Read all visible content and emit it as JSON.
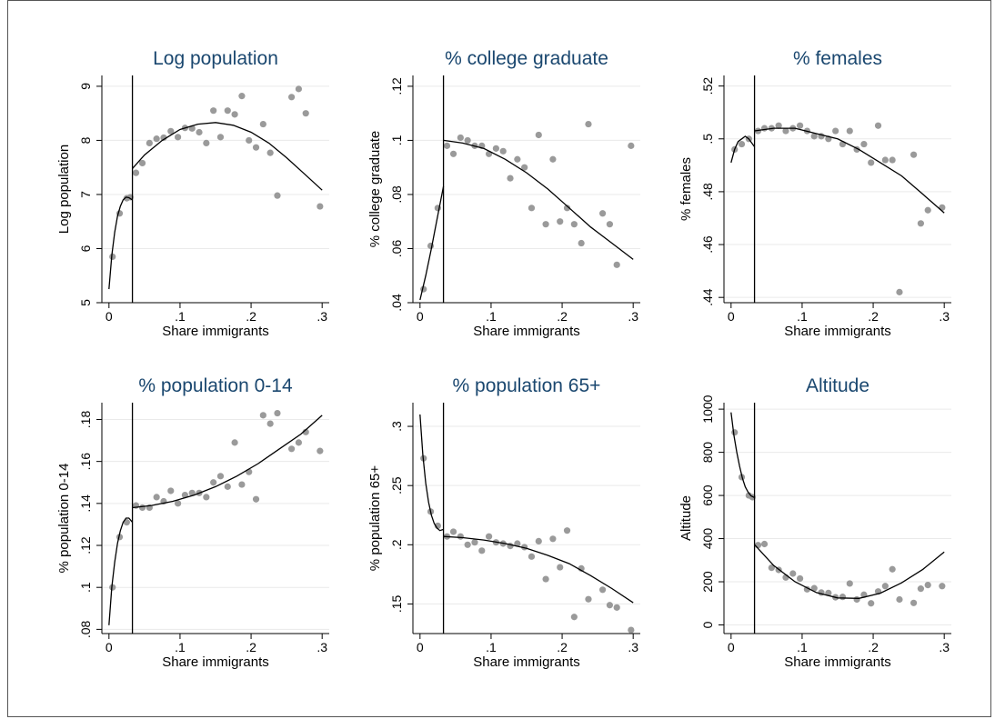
{
  "figure": {
    "bg_color": "#ffffff",
    "title_color": "#1a476f",
    "point_color": "#9a9a9a",
    "cutoff_x": 0.033
  },
  "chart_data": [
    {
      "type": "scatter",
      "title": "Log population",
      "xlabel": "Share immigrants",
      "ylabel": "Log population",
      "xlim": [
        -0.01,
        0.31
      ],
      "ylim": [
        5,
        9.2
      ],
      "xticks": [
        0,
        0.1,
        0.2,
        0.3
      ],
      "xtick_labels": [
        "0",
        ".1",
        ".2",
        ".3"
      ],
      "yticks": [
        5,
        6,
        7,
        8,
        9
      ],
      "ytick_labels": [
        "5",
        "6",
        "7",
        "8",
        "9"
      ],
      "grid": true,
      "points": [
        [
          0.005,
          5.85
        ],
        [
          0.015,
          6.65
        ],
        [
          0.025,
          6.93
        ],
        [
          0.03,
          6.95
        ],
        [
          0.038,
          7.4
        ],
        [
          0.047,
          7.58
        ],
        [
          0.057,
          7.95
        ],
        [
          0.067,
          8.03
        ],
        [
          0.077,
          8.05
        ],
        [
          0.087,
          8.17
        ],
        [
          0.097,
          8.06
        ],
        [
          0.107,
          8.23
        ],
        [
          0.117,
          8.22
        ],
        [
          0.127,
          8.15
        ],
        [
          0.137,
          7.95
        ],
        [
          0.147,
          8.55
        ],
        [
          0.157,
          8.06
        ],
        [
          0.167,
          8.55
        ],
        [
          0.177,
          8.48
        ],
        [
          0.187,
          8.82
        ],
        [
          0.197,
          8.0
        ],
        [
          0.207,
          7.87
        ],
        [
          0.217,
          8.3
        ],
        [
          0.227,
          7.77
        ],
        [
          0.237,
          6.98
        ],
        [
          0.257,
          8.8
        ],
        [
          0.267,
          8.95
        ],
        [
          0.277,
          8.5
        ],
        [
          0.297,
          6.78
        ]
      ],
      "fit_left": [
        [
          0,
          5.25
        ],
        [
          0.004,
          5.87
        ],
        [
          0.008,
          6.3
        ],
        [
          0.012,
          6.6
        ],
        [
          0.016,
          6.78
        ],
        [
          0.02,
          6.9
        ],
        [
          0.024,
          6.95
        ],
        [
          0.028,
          6.94
        ],
        [
          0.033,
          6.9
        ]
      ],
      "fit_right": [
        [
          0.033,
          7.48
        ],
        [
          0.05,
          7.73
        ],
        [
          0.075,
          8.0
        ],
        [
          0.1,
          8.2
        ],
        [
          0.125,
          8.3
        ],
        [
          0.15,
          8.33
        ],
        [
          0.175,
          8.28
        ],
        [
          0.2,
          8.15
        ],
        [
          0.225,
          7.95
        ],
        [
          0.25,
          7.68
        ],
        [
          0.275,
          7.38
        ],
        [
          0.3,
          7.08
        ]
      ]
    },
    {
      "type": "scatter",
      "title": "% college graduate",
      "xlabel": "Share immigrants",
      "ylabel": "% college graduate",
      "xlim": [
        -0.01,
        0.31
      ],
      "ylim": [
        0.04,
        0.124
      ],
      "xticks": [
        0,
        0.1,
        0.2,
        0.3
      ],
      "xtick_labels": [
        "0",
        ".1",
        ".2",
        ".3"
      ],
      "yticks": [
        0.04,
        0.06,
        0.08,
        0.1,
        0.12
      ],
      "ytick_labels": [
        ".04",
        ".06",
        ".08",
        ".1",
        ".12"
      ],
      "grid": true,
      "points": [
        [
          0.005,
          0.045
        ],
        [
          0.015,
          0.061
        ],
        [
          0.025,
          0.075
        ],
        [
          0.038,
          0.098
        ],
        [
          0.047,
          0.095
        ],
        [
          0.057,
          0.101
        ],
        [
          0.067,
          0.1
        ],
        [
          0.077,
          0.098
        ],
        [
          0.087,
          0.098
        ],
        [
          0.097,
          0.095
        ],
        [
          0.107,
          0.097
        ],
        [
          0.117,
          0.096
        ],
        [
          0.127,
          0.086
        ],
        [
          0.137,
          0.093
        ],
        [
          0.147,
          0.09
        ],
        [
          0.157,
          0.075
        ],
        [
          0.167,
          0.102
        ],
        [
          0.177,
          0.069
        ],
        [
          0.187,
          0.093
        ],
        [
          0.197,
          0.07
        ],
        [
          0.207,
          0.075
        ],
        [
          0.217,
          0.069
        ],
        [
          0.227,
          0.062
        ],
        [
          0.237,
          0.106
        ],
        [
          0.257,
          0.073
        ],
        [
          0.267,
          0.069
        ],
        [
          0.277,
          0.054
        ],
        [
          0.297,
          0.098
        ]
      ],
      "fit_left": [
        [
          0,
          0.041
        ],
        [
          0.008,
          0.05
        ],
        [
          0.016,
          0.06
        ],
        [
          0.024,
          0.071
        ],
        [
          0.033,
          0.083
        ]
      ],
      "fit_right": [
        [
          0.033,
          0.1
        ],
        [
          0.06,
          0.099
        ],
        [
          0.09,
          0.097
        ],
        [
          0.12,
          0.093
        ],
        [
          0.15,
          0.088
        ],
        [
          0.18,
          0.082
        ],
        [
          0.21,
          0.075
        ],
        [
          0.24,
          0.068
        ],
        [
          0.27,
          0.062
        ],
        [
          0.3,
          0.056
        ]
      ]
    },
    {
      "type": "scatter",
      "title": "% females",
      "xlabel": "Share immigrants",
      "ylabel": "% females",
      "xlim": [
        -0.01,
        0.31
      ],
      "ylim": [
        0.438,
        0.524
      ],
      "xticks": [
        0,
        0.1,
        0.2,
        0.3
      ],
      "xtick_labels": [
        "0",
        ".1",
        ".2",
        ".3"
      ],
      "yticks": [
        0.44,
        0.46,
        0.48,
        0.5,
        0.52
      ],
      "ytick_labels": [
        ".44",
        ".46",
        ".48",
        ".5",
        ".52"
      ],
      "grid": true,
      "points": [
        [
          0.005,
          0.496
        ],
        [
          0.015,
          0.498
        ],
        [
          0.025,
          0.5
        ],
        [
          0.038,
          0.503
        ],
        [
          0.047,
          0.504
        ],
        [
          0.057,
          0.504
        ],
        [
          0.067,
          0.505
        ],
        [
          0.077,
          0.503
        ],
        [
          0.087,
          0.504
        ],
        [
          0.097,
          0.505
        ],
        [
          0.107,
          0.503
        ],
        [
          0.117,
          0.501
        ],
        [
          0.127,
          0.501
        ],
        [
          0.137,
          0.5
        ],
        [
          0.147,
          0.503
        ],
        [
          0.157,
          0.498
        ],
        [
          0.167,
          0.503
        ],
        [
          0.177,
          0.496
        ],
        [
          0.187,
          0.498
        ],
        [
          0.197,
          0.491
        ],
        [
          0.207,
          0.505
        ],
        [
          0.217,
          0.492
        ],
        [
          0.227,
          0.492
        ],
        [
          0.237,
          0.442
        ],
        [
          0.257,
          0.494
        ],
        [
          0.267,
          0.468
        ],
        [
          0.277,
          0.473
        ],
        [
          0.297,
          0.474
        ]
      ],
      "fit_left": [
        [
          0,
          0.491
        ],
        [
          0.005,
          0.496
        ],
        [
          0.01,
          0.499
        ],
        [
          0.015,
          0.5
        ],
        [
          0.02,
          0.501
        ],
        [
          0.025,
          0.5
        ],
        [
          0.033,
          0.497
        ]
      ],
      "fit_right": [
        [
          0.033,
          0.503
        ],
        [
          0.06,
          0.504
        ],
        [
          0.09,
          0.504
        ],
        [
          0.12,
          0.502
        ],
        [
          0.15,
          0.5
        ],
        [
          0.18,
          0.496
        ],
        [
          0.21,
          0.491
        ],
        [
          0.24,
          0.486
        ],
        [
          0.27,
          0.479
        ],
        [
          0.3,
          0.472
        ]
      ]
    },
    {
      "type": "scatter",
      "title": "% population 0-14",
      "xlabel": "Share immigrants",
      "ylabel": "% population 0-14",
      "xlim": [
        -0.01,
        0.31
      ],
      "ylim": [
        0.078,
        0.188
      ],
      "xticks": [
        0,
        0.1,
        0.2,
        0.3
      ],
      "xtick_labels": [
        "0",
        ".1",
        ".2",
        ".3"
      ],
      "yticks": [
        0.08,
        0.1,
        0.12,
        0.14,
        0.16,
        0.18
      ],
      "ytick_labels": [
        ".08",
        ".1",
        ".12",
        ".14",
        ".16",
        ".18"
      ],
      "grid": true,
      "points": [
        [
          0.005,
          0.1
        ],
        [
          0.015,
          0.124
        ],
        [
          0.025,
          0.131
        ],
        [
          0.038,
          0.139
        ],
        [
          0.047,
          0.138
        ],
        [
          0.057,
          0.138
        ],
        [
          0.067,
          0.143
        ],
        [
          0.077,
          0.141
        ],
        [
          0.087,
          0.146
        ],
        [
          0.097,
          0.14
        ],
        [
          0.107,
          0.144
        ],
        [
          0.117,
          0.145
        ],
        [
          0.127,
          0.145
        ],
        [
          0.137,
          0.143
        ],
        [
          0.147,
          0.15
        ],
        [
          0.157,
          0.153
        ],
        [
          0.167,
          0.148
        ],
        [
          0.177,
          0.169
        ],
        [
          0.187,
          0.149
        ],
        [
          0.197,
          0.155
        ],
        [
          0.207,
          0.142
        ],
        [
          0.217,
          0.182
        ],
        [
          0.227,
          0.178
        ],
        [
          0.237,
          0.183
        ],
        [
          0.257,
          0.166
        ],
        [
          0.267,
          0.169
        ],
        [
          0.277,
          0.174
        ],
        [
          0.297,
          0.165
        ]
      ],
      "fit_left": [
        [
          0,
          0.082
        ],
        [
          0.004,
          0.1
        ],
        [
          0.008,
          0.112
        ],
        [
          0.012,
          0.121
        ],
        [
          0.016,
          0.127
        ],
        [
          0.02,
          0.131
        ],
        [
          0.024,
          0.133
        ],
        [
          0.028,
          0.133
        ],
        [
          0.033,
          0.131
        ]
      ],
      "fit_right": [
        [
          0.033,
          0.138
        ],
        [
          0.06,
          0.139
        ],
        [
          0.09,
          0.141
        ],
        [
          0.12,
          0.144
        ],
        [
          0.15,
          0.148
        ],
        [
          0.18,
          0.153
        ],
        [
          0.21,
          0.159
        ],
        [
          0.24,
          0.166
        ],
        [
          0.27,
          0.173
        ],
        [
          0.3,
          0.182
        ]
      ]
    },
    {
      "type": "scatter",
      "title": "% population 65+",
      "xlabel": "Share immigrants",
      "ylabel": "% population 65+",
      "xlim": [
        -0.01,
        0.31
      ],
      "ylim": [
        0.125,
        0.32
      ],
      "xticks": [
        0,
        0.1,
        0.2,
        0.3
      ],
      "xtick_labels": [
        "0",
        ".1",
        ".2",
        ".3"
      ],
      "yticks": [
        0.15,
        0.2,
        0.25,
        0.3
      ],
      "ytick_labels": [
        ".15",
        ".2",
        ".25",
        ".3"
      ],
      "grid": true,
      "points": [
        [
          0.005,
          0.273
        ],
        [
          0.015,
          0.228
        ],
        [
          0.025,
          0.216
        ],
        [
          0.038,
          0.207
        ],
        [
          0.047,
          0.211
        ],
        [
          0.057,
          0.207
        ],
        [
          0.067,
          0.2
        ],
        [
          0.077,
          0.202
        ],
        [
          0.087,
          0.195
        ],
        [
          0.097,
          0.207
        ],
        [
          0.107,
          0.202
        ],
        [
          0.117,
          0.201
        ],
        [
          0.127,
          0.199
        ],
        [
          0.137,
          0.201
        ],
        [
          0.147,
          0.198
        ],
        [
          0.157,
          0.19
        ],
        [
          0.167,
          0.203
        ],
        [
          0.177,
          0.171
        ],
        [
          0.187,
          0.205
        ],
        [
          0.197,
          0.181
        ],
        [
          0.207,
          0.212
        ],
        [
          0.217,
          0.139
        ],
        [
          0.227,
          0.18
        ],
        [
          0.237,
          0.154
        ],
        [
          0.257,
          0.162
        ],
        [
          0.267,
          0.149
        ],
        [
          0.277,
          0.147
        ],
        [
          0.297,
          0.128
        ]
      ],
      "fit_left": [
        [
          0,
          0.31
        ],
        [
          0.004,
          0.276
        ],
        [
          0.008,
          0.252
        ],
        [
          0.012,
          0.236
        ],
        [
          0.016,
          0.225
        ],
        [
          0.02,
          0.218
        ],
        [
          0.024,
          0.214
        ],
        [
          0.028,
          0.212
        ],
        [
          0.033,
          0.213
        ]
      ],
      "fit_right": [
        [
          0.033,
          0.207
        ],
        [
          0.06,
          0.206
        ],
        [
          0.09,
          0.204
        ],
        [
          0.12,
          0.201
        ],
        [
          0.15,
          0.197
        ],
        [
          0.18,
          0.191
        ],
        [
          0.21,
          0.184
        ],
        [
          0.24,
          0.174
        ],
        [
          0.27,
          0.163
        ],
        [
          0.3,
          0.151
        ]
      ]
    },
    {
      "type": "scatter",
      "title": "Altitude",
      "xlabel": "Share immigrants",
      "ylabel": "Altitude",
      "xlim": [
        -0.01,
        0.31
      ],
      "ylim": [
        -40,
        1030
      ],
      "xticks": [
        0,
        0.1,
        0.2,
        0.3
      ],
      "xtick_labels": [
        "0",
        ".1",
        ".2",
        ".3"
      ],
      "yticks": [
        0,
        200,
        400,
        600,
        800,
        1000
      ],
      "ytick_labels": [
        "0",
        "200",
        "400",
        "600",
        "800",
        "1000"
      ],
      "grid": true,
      "points": [
        [
          0.005,
          892
        ],
        [
          0.015,
          685
        ],
        [
          0.025,
          600
        ],
        [
          0.03,
          592
        ],
        [
          0.038,
          370
        ],
        [
          0.047,
          375
        ],
        [
          0.057,
          265
        ],
        [
          0.067,
          255
        ],
        [
          0.077,
          220
        ],
        [
          0.087,
          238
        ],
        [
          0.097,
          215
        ],
        [
          0.107,
          165
        ],
        [
          0.117,
          170
        ],
        [
          0.127,
          150
        ],
        [
          0.137,
          148
        ],
        [
          0.147,
          128
        ],
        [
          0.157,
          130
        ],
        [
          0.167,
          192
        ],
        [
          0.177,
          118
        ],
        [
          0.187,
          140
        ],
        [
          0.197,
          100
        ],
        [
          0.207,
          155
        ],
        [
          0.217,
          180
        ],
        [
          0.227,
          258
        ],
        [
          0.237,
          118
        ],
        [
          0.257,
          102
        ],
        [
          0.267,
          168
        ],
        [
          0.277,
          185
        ],
        [
          0.297,
          180
        ]
      ],
      "fit_left": [
        [
          0,
          985
        ],
        [
          0.004,
          880
        ],
        [
          0.008,
          800
        ],
        [
          0.012,
          735
        ],
        [
          0.016,
          680
        ],
        [
          0.02,
          640
        ],
        [
          0.024,
          615
        ],
        [
          0.028,
          598
        ],
        [
          0.033,
          590
        ]
      ],
      "fit_right": [
        [
          0.033,
          372
        ],
        [
          0.06,
          275
        ],
        [
          0.09,
          200
        ],
        [
          0.12,
          150
        ],
        [
          0.15,
          125
        ],
        [
          0.18,
          123
        ],
        [
          0.21,
          147
        ],
        [
          0.24,
          195
        ],
        [
          0.27,
          258
        ],
        [
          0.3,
          338
        ]
      ]
    }
  ]
}
